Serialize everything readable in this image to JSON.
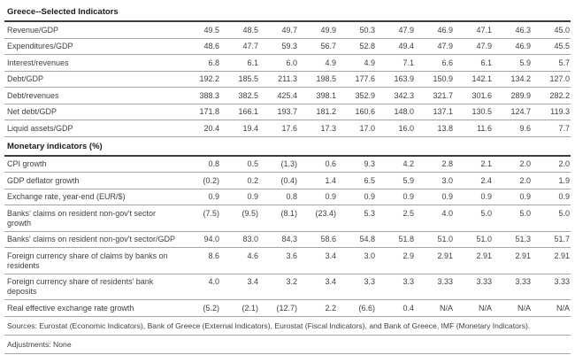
{
  "page_title": "Greece--Selected Indicators",
  "chart_data": {
    "type": "table",
    "title": "Greece--Selected Indicators",
    "column_headers_visible": false,
    "num_value_columns": 10,
    "negative_format": "parentheses",
    "sections": [
      {
        "title": "",
        "rows": [
          [
            "Revenue/GDP",
            "49.5",
            "48.5",
            "49.7",
            "49.9",
            "50.3",
            "47.9",
            "46.9",
            "47.1",
            "46.3",
            "45.0"
          ],
          [
            "Expenditures/GDP",
            "48.6",
            "47.7",
            "59.3",
            "56.7",
            "52.8",
            "49.4",
            "47.9",
            "47.9",
            "46.9",
            "45.5"
          ],
          [
            "Interest/revenues",
            "6.8",
            "6.1",
            "6.0",
            "4.9",
            "4.9",
            "7.1",
            "6.6",
            "6.1",
            "5.9",
            "5.7"
          ],
          [
            "Debt/GDP",
            "192.2",
            "185.5",
            "211.3",
            "198.5",
            "177.6",
            "163.9",
            "150.9",
            "142.1",
            "134.2",
            "127.0"
          ],
          [
            "Debt/revenues",
            "388.3",
            "382.5",
            "425.4",
            "398.1",
            "352.9",
            "342.3",
            "321.7",
            "301.6",
            "289.9",
            "282.2"
          ],
          [
            "Net debt/GDP",
            "171.8",
            "166.1",
            "193.7",
            "181.2",
            "160.6",
            "148.0",
            "137.1",
            "130.5",
            "124.7",
            "119.3"
          ],
          [
            "Liquid assets/GDP",
            "20.4",
            "19.4",
            "17.6",
            "17.3",
            "17.0",
            "16.0",
            "13.8",
            "11.6",
            "9.6",
            "7.7"
          ]
        ]
      },
      {
        "title": "Monetary indicators (%)",
        "rows": [
          [
            "CPI growth",
            "0.8",
            "0.5",
            "(1.3)",
            "0.6",
            "9.3",
            "4.2",
            "2.8",
            "2.1",
            "2.0",
            "2.0"
          ],
          [
            "GDP deflator growth",
            "(0.2)",
            "0.2",
            "(0.4)",
            "1.4",
            "6.5",
            "5.9",
            "3.0",
            "2.4",
            "2.0",
            "1.9"
          ],
          [
            "Exchange rate, year-end (EUR/$)",
            "0.9",
            "0.9",
            "0.8",
            "0.9",
            "0.9",
            "0.9",
            "0.9",
            "0.9",
            "0.9",
            "0.9"
          ],
          [
            "Banks' claims on resident non-gov't sector growth",
            "(7.5)",
            "(9.5)",
            "(8.1)",
            "(23.4)",
            "5.3",
            "2.5",
            "4.0",
            "5.0",
            "5.0",
            "5.0"
          ],
          [
            "Banks' claims on resident non-gov't sector/GDP",
            "94.0",
            "83.0",
            "84.3",
            "58.6",
            "54.8",
            "51.8",
            "51.0",
            "51.0",
            "51.3",
            "51.7"
          ],
          [
            "Foreign currency share of claims by banks on residents",
            "8.6",
            "4.6",
            "3.6",
            "3.4",
            "3.0",
            "2.9",
            "2.91",
            "2.91",
            "2.91",
            "2.91"
          ],
          [
            "Foreign currency share of residents' bank deposits",
            "4.0",
            "3.4",
            "3.2",
            "3.4",
            "3.3",
            "3.3",
            "3.33",
            "3.33",
            "3.33",
            "3.33"
          ],
          [
            "Real effective exchange rate growth",
            "(5.2)",
            "(2.1)",
            "(12.7)",
            "2.2",
            "(6.6)",
            "0.4",
            "N/A",
            "N/A",
            "N/A",
            "N/A"
          ]
        ]
      }
    ]
  },
  "footnotes": {
    "sources": "Sources: Eurostat (Economic Indicators), Bank of Greece (External Indicators), Eurostat (Fiscal Indicators), and Bank of Greece, IMF (Monetary Indicators).",
    "adjustments": "Adjustments: None"
  },
  "colors": {
    "background": "#ffffff",
    "text": "#414141",
    "heading_text": "#1c1c1c",
    "rule": "#a6a6a6",
    "heavy_rule": "#3d3d3d"
  }
}
